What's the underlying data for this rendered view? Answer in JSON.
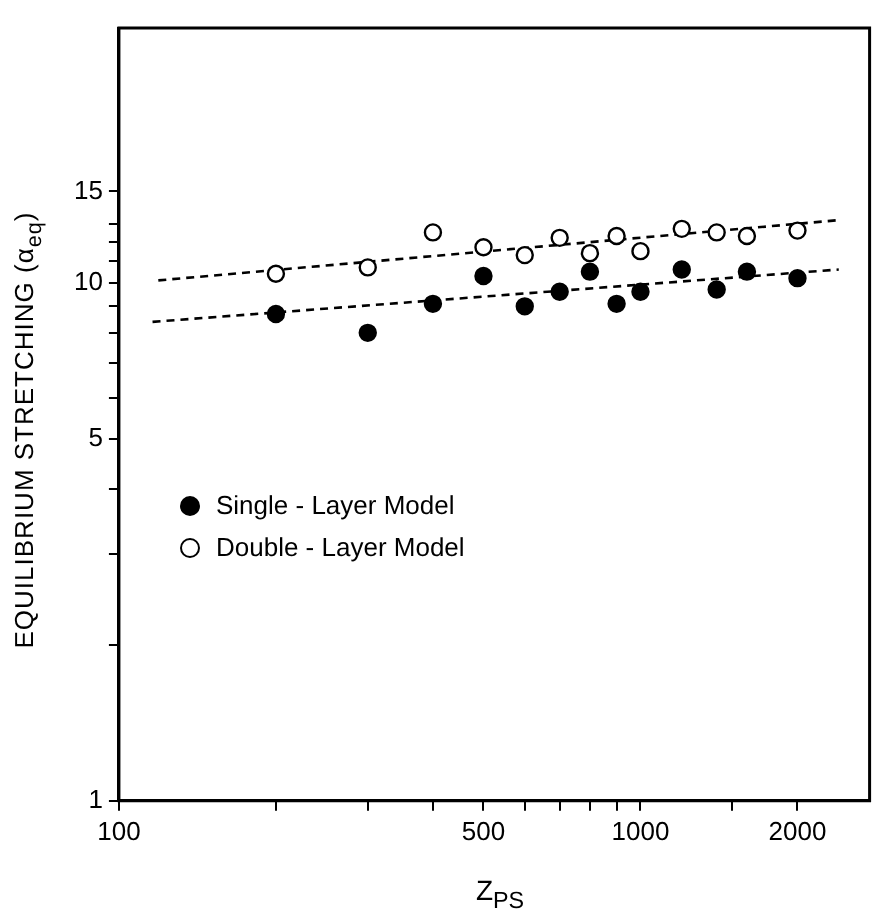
{
  "chart_data": {
    "type": "scatter",
    "xlabel": "Z$_{PS}$",
    "ylabel": "EQUILIBRIUM  STRETCHING  (α$_{eq}$)",
    "log": "xy",
    "grid": false,
    "legend": "left",
    "marker": "circle",
    "x": [
      200,
      300,
      400,
      500,
      600,
      700,
      800,
      900,
      1000,
      1200,
      1400,
      1600,
      2000
    ],
    "xlim": [
      100,
      2750
    ],
    "xticks": [
      100,
      {
        "value": 200,
        "label": null
      },
      {
        "value": 300,
        "label": null
      },
      {
        "value": 400,
        "label": null
      },
      500,
      {
        "value": 600,
        "label": null
      },
      {
        "value": 700,
        "label": null
      },
      {
        "value": 800,
        "label": null
      },
      {
        "value": 900,
        "label": null
      },
      1000,
      {
        "value": 1500,
        "label": null
      },
      2000
    ],
    "ylim": [
      1,
      31
    ],
    "yticks": [
      1,
      {
        "value": 2,
        "label": null
      },
      {
        "value": 3,
        "label": null
      },
      {
        "value": 4,
        "label": null
      },
      5,
      {
        "value": 6,
        "label": null
      },
      {
        "value": 7,
        "label": null
      },
      {
        "value": 8,
        "label": null
      },
      {
        "value": 9,
        "label": null
      },
      10,
      {
        "value": 11,
        "label": null
      },
      {
        "value": 12,
        "label": null
      },
      {
        "value": 13,
        "label": null
      },
      15
    ],
    "series": [
      {
        "name": "Single - Layer Model",
        "color": "#000000",
        "values": [
          8.7,
          8.0,
          9.1,
          10.3,
          9.0,
          9.6,
          10.5,
          9.1,
          9.6,
          10.6,
          9.7,
          10.5,
          10.2
        ]
      },
      {
        "name": "Double - Layer Model",
        "color": "#ffffff",
        "values": [
          10.4,
          10.7,
          12.5,
          11.7,
          11.3,
          12.2,
          11.4,
          12.3,
          11.5,
          12.7,
          12.5,
          12.3,
          12.6
        ]
      },
      {
        "type": "line",
        "color": "#000000",
        "marker": "none",
        "line_style": "dashed",
        "x": [
          116,
          2400
        ],
        "values": [
          8.4,
          10.6
        ]
      },
      {
        "type": "line",
        "color": "#000000",
        "marker": "none",
        "line_style": "dashed",
        "x": [
          119,
          2400
        ],
        "values": [
          10.1,
          13.2
        ]
      }
    ]
  }
}
